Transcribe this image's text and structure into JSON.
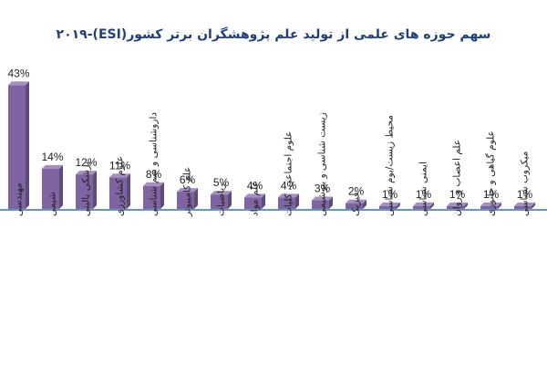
{
  "chart_data": {
    "type": "bar",
    "title": "سهم حوزه های علمی از تولید علم پژوهشگران برتر کشور(ESI)-۲۰۱۹",
    "categories": [
      "مهندسی",
      "شیمی",
      "پزشکی بالینی",
      "علوم کشاورزی",
      "داروشناسی و سم شناسی",
      "علم کامپیوتر",
      "ریاضیات",
      "علم مواد",
      "علوم اجتماعی، کلیات",
      "زیست شناسی و بیوشیمی",
      "فیزیک",
      "محیط زیست/بوم شناسی",
      "ایمنی شناسی",
      "علم اعصاب و روان",
      "علوم گیاهی و جانوری",
      "میکروب شناسی"
    ],
    "values": [
      43,
      14,
      12,
      11,
      8,
      6,
      5,
      4,
      4,
      3,
      2,
      1,
      1,
      1,
      1,
      1
    ],
    "value_labels": [
      "43%",
      "14%",
      "12%",
      "11%",
      "8%",
      "6%",
      "5%",
      "4%",
      "4%",
      "3%",
      "2%",
      "1%",
      "1%",
      "1%",
      "1%",
      "1%"
    ],
    "ylim": [
      0,
      45
    ],
    "grid": false,
    "bar_color": "#8064a2",
    "bar_side_color": "#5f4a7c",
    "bar_top_color": "#a58fc2",
    "baseline_color": "#2e75b6"
  }
}
